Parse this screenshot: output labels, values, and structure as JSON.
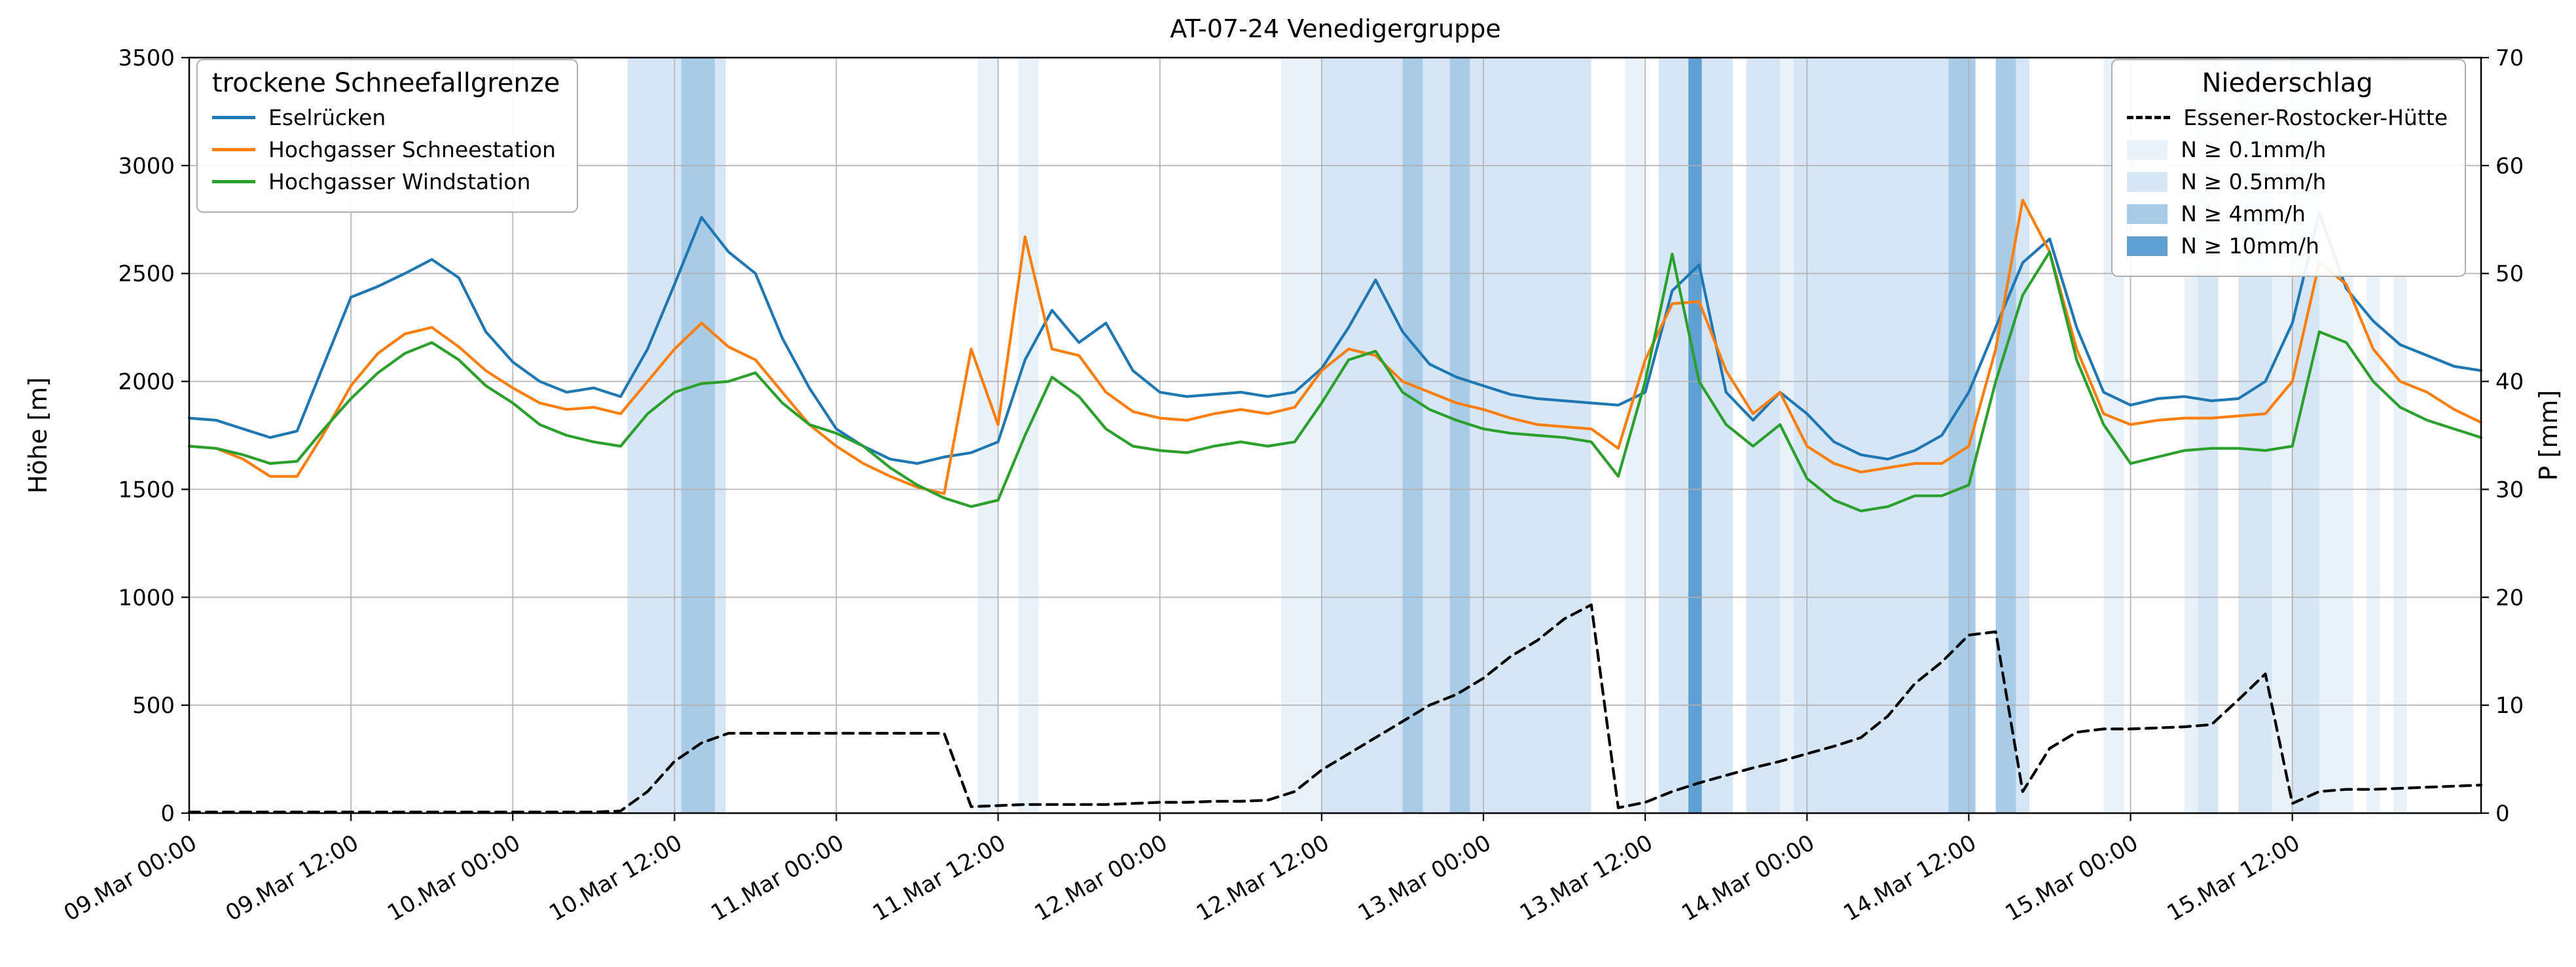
{
  "chart_data": {
    "type": "line",
    "title": "AT-07-24 Venedigergruppe",
    "ylabel_left": "Höhe [m]",
    "ylabel_right": "P [mm]",
    "ylim_left": [
      0,
      3500
    ],
    "ylim_right": [
      0,
      70
    ],
    "yticks_left": [
      0,
      500,
      1000,
      1500,
      2000,
      2500,
      3000,
      3500
    ],
    "yticks_right": [
      0,
      10,
      20,
      30,
      40,
      50,
      60,
      70
    ],
    "grid": true,
    "xlim_hours": [
      0,
      170
    ],
    "x_start_label": "09.Mar 00:00",
    "t_start_hours": 0,
    "t_step_hours": 2,
    "xtick_hours": [
      0,
      12,
      24,
      36,
      48,
      60,
      72,
      84,
      96,
      108,
      120,
      132,
      144,
      156
    ],
    "xtick_labels": [
      "09.Mar 00:00",
      "09.Mar 12:00",
      "10.Mar 00:00",
      "10.Mar 12:00",
      "11.Mar 00:00",
      "11.Mar 12:00",
      "12.Mar 00:00",
      "12.Mar 12:00",
      "13.Mar 00:00",
      "13.Mar 12:00",
      "14.Mar 00:00",
      "14.Mar 12:00",
      "15.Mar 00:00",
      "15.Mar 12:00"
    ],
    "series": [
      {
        "name": "Eselrücken",
        "color": "#1f77b4",
        "axis": "left",
        "style": "solid",
        "values": [
          1830,
          1820,
          1780,
          1740,
          1770,
          2080,
          2390,
          2440,
          2500,
          2565,
          2480,
          2230,
          2090,
          2000,
          1950,
          1970,
          1930,
          2150,
          2450,
          2760,
          2600,
          2500,
          2200,
          1970,
          1780,
          1700,
          1640,
          1620,
          1650,
          1670,
          1720,
          2100,
          2330,
          2180,
          2270,
          2050,
          1950,
          1930,
          1940,
          1950,
          1930,
          1950,
          2060,
          2250,
          2470,
          2230,
          2080,
          2020,
          1980,
          1940,
          1920,
          1910,
          1900,
          1890,
          1950,
          2420,
          2540,
          1950,
          1820,
          1950,
          1850,
          1720,
          1660,
          1640,
          1680,
          1750,
          1950,
          2250,
          2550,
          2660,
          2250,
          1950,
          1890,
          1920,
          1930,
          1910,
          1920,
          2000,
          2270,
          2780,
          2430,
          2280,
          2170,
          2120,
          2070,
          2050
        ]
      },
      {
        "name": "Hochgasser Schneestation",
        "color": "#ff7f0e",
        "axis": "left",
        "style": "solid",
        "values": [
          1700,
          1690,
          1640,
          1560,
          1560,
          1760,
          1980,
          2130,
          2220,
          2250,
          2160,
          2050,
          1970,
          1900,
          1870,
          1880,
          1850,
          2000,
          2150,
          2270,
          2160,
          2100,
          1950,
          1800,
          1700,
          1620,
          1560,
          1510,
          1480,
          2150,
          1800,
          2670,
          2150,
          2120,
          1950,
          1860,
          1830,
          1820,
          1850,
          1870,
          1850,
          1880,
          2050,
          2150,
          2120,
          2000,
          1950,
          1900,
          1870,
          1830,
          1800,
          1790,
          1780,
          1690,
          2100,
          2360,
          2370,
          2050,
          1850,
          1950,
          1700,
          1620,
          1580,
          1600,
          1620,
          1620,
          1700,
          2150,
          2840,
          2600,
          2150,
          1850,
          1800,
          1820,
          1830,
          1830,
          1840,
          1850,
          2000,
          2550,
          2450,
          2150,
          2000,
          1950,
          1870,
          1810
        ]
      },
      {
        "name": "Hochgasser Windstation",
        "color": "#2ca02c",
        "axis": "left",
        "style": "solid",
        "values": [
          1700,
          1690,
          1660,
          1620,
          1630,
          1780,
          1920,
          2040,
          2130,
          2180,
          2100,
          1980,
          1900,
          1800,
          1750,
          1720,
          1700,
          1850,
          1950,
          1990,
          2000,
          2040,
          1900,
          1800,
          1760,
          1700,
          1600,
          1520,
          1460,
          1420,
          1450,
          1750,
          2020,
          1930,
          1780,
          1700,
          1680,
          1670,
          1700,
          1720,
          1700,
          1720,
          1900,
          2100,
          2140,
          1950,
          1870,
          1820,
          1780,
          1760,
          1750,
          1740,
          1720,
          1560,
          2000,
          2590,
          2000,
          1800,
          1700,
          1800,
          1550,
          1450,
          1400,
          1420,
          1470,
          1470,
          1520,
          2000,
          2400,
          2600,
          2100,
          1800,
          1620,
          1650,
          1680,
          1690,
          1690,
          1680,
          1700,
          2230,
          2180,
          2000,
          1880,
          1820,
          1780,
          1740
        ]
      },
      {
        "name": "Essener-Rostocker-Hütte",
        "color": "#000000",
        "axis": "right",
        "style": "dashed",
        "values": [
          0.1,
          0.1,
          0.1,
          0.1,
          0.1,
          0.1,
          0.1,
          0.1,
          0.1,
          0.1,
          0.1,
          0.1,
          0.1,
          0.1,
          0.1,
          0.1,
          0.2,
          2.0,
          4.8,
          6.5,
          7.4,
          7.4,
          7.4,
          7.4,
          7.4,
          7.4,
          7.4,
          7.4,
          7.4,
          0.6,
          0.7,
          0.8,
          0.8,
          0.8,
          0.8,
          0.9,
          1.0,
          1.0,
          1.1,
          1.1,
          1.2,
          2.0,
          4.0,
          5.5,
          7.0,
          8.5,
          10.0,
          11.0,
          12.5,
          14.5,
          16.0,
          18.0,
          19.3,
          0.5,
          1.0,
          2.0,
          2.8,
          3.5,
          4.2,
          4.8,
          5.5,
          6.2,
          7.0,
          9.0,
          12.0,
          14.0,
          16.5,
          16.8,
          2.0,
          6.0,
          7.5,
          7.8,
          7.8,
          7.9,
          8.0,
          8.2,
          10.5,
          12.9,
          0.9,
          2.0,
          2.2,
          2.2,
          2.3,
          2.4,
          2.5,
          2.6
        ]
      }
    ],
    "precip_bands": {
      "levels": [
        {
          "label": "N ≥ 0.1mm/h",
          "color": "#e9f1fa"
        },
        {
          "label": "N ≥ 0.5mm/h",
          "color": "#d6e6f5"
        },
        {
          "label": "N ≥ 4mm/h",
          "color": "#a8cbe8"
        },
        {
          "label": "N ≥ 10mm/h",
          "color": "#5f9fd1"
        }
      ],
      "intervals": [
        {
          "start": 32.5,
          "end": 36.5,
          "level": 1
        },
        {
          "start": 36.5,
          "end": 39.0,
          "level": 2
        },
        {
          "start": 39.0,
          "end": 39.8,
          "level": 1
        },
        {
          "start": 58.5,
          "end": 60.0,
          "level": 0
        },
        {
          "start": 61.5,
          "end": 63.0,
          "level": 0
        },
        {
          "start": 81.0,
          "end": 84.0,
          "level": 0
        },
        {
          "start": 84.0,
          "end": 90.0,
          "level": 1
        },
        {
          "start": 90.0,
          "end": 91.5,
          "level": 2
        },
        {
          "start": 91.5,
          "end": 93.5,
          "level": 1
        },
        {
          "start": 93.5,
          "end": 95.0,
          "level": 2
        },
        {
          "start": 95.0,
          "end": 104.0,
          "level": 1
        },
        {
          "start": 106.5,
          "end": 108.0,
          "level": 0
        },
        {
          "start": 109.0,
          "end": 111.2,
          "level": 1
        },
        {
          "start": 111.2,
          "end": 112.2,
          "level": 3
        },
        {
          "start": 112.2,
          "end": 114.5,
          "level": 1
        },
        {
          "start": 115.5,
          "end": 118.0,
          "level": 1
        },
        {
          "start": 118.0,
          "end": 119.0,
          "level": 0
        },
        {
          "start": 119.0,
          "end": 130.5,
          "level": 1
        },
        {
          "start": 130.5,
          "end": 132.5,
          "level": 2
        },
        {
          "start": 134.0,
          "end": 135.5,
          "level": 2
        },
        {
          "start": 135.5,
          "end": 136.5,
          "level": 1
        },
        {
          "start": 142.0,
          "end": 143.5,
          "level": 0
        },
        {
          "start": 148.0,
          "end": 149.0,
          "level": 0
        },
        {
          "start": 149.0,
          "end": 150.5,
          "level": 1
        },
        {
          "start": 152.0,
          "end": 154.5,
          "level": 1
        },
        {
          "start": 154.5,
          "end": 156.0,
          "level": 0
        },
        {
          "start": 156.0,
          "end": 158.0,
          "level": 1
        },
        {
          "start": 158.0,
          "end": 160.5,
          "level": 0
        },
        {
          "start": 161.5,
          "end": 162.5,
          "level": 0
        },
        {
          "start": 163.5,
          "end": 164.5,
          "level": 0
        }
      ]
    },
    "legend_left": {
      "title": "trockene Schneefallgrenze"
    },
    "legend_right": {
      "title": "Niederschlag"
    }
  }
}
